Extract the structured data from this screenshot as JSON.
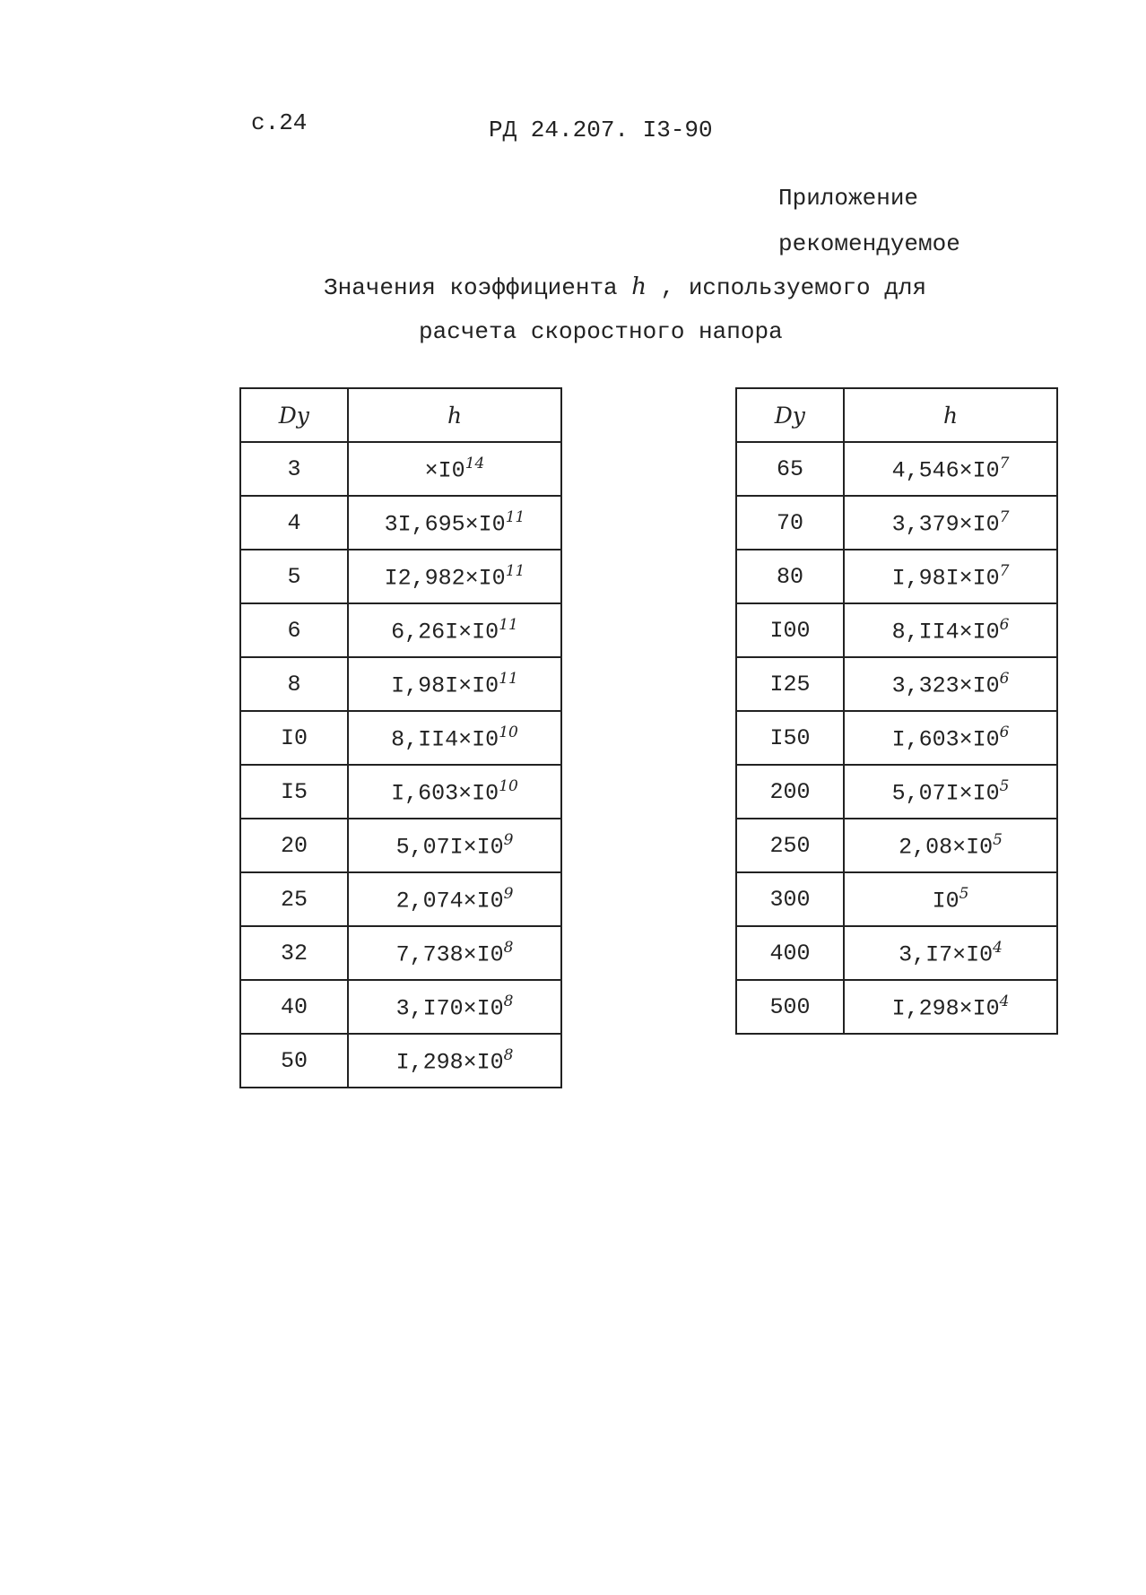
{
  "header": {
    "page": "с.24",
    "code": "РД 24.207. I3-90"
  },
  "appendix": {
    "label": "Приложение",
    "status": "рекомендуемое"
  },
  "title": {
    "line1_before": "Значения коэффициента",
    "symbol": "h",
    "line1_after": ", используемого для",
    "line2": "расчета скоростного напора"
  },
  "tables": [
    {
      "header": [
        "Dу",
        "h"
      ],
      "rows": [
        [
          "3",
          "×I0",
          "14"
        ],
        [
          "4",
          "3I,695×I0",
          "11"
        ],
        [
          "5",
          "I2,982×I0",
          "11"
        ],
        [
          "6",
          "6,26I×I0",
          "11"
        ],
        [
          "8",
          "I,98I×I0",
          "11"
        ],
        [
          "I0",
          "8,II4×I0",
          "10"
        ],
        [
          "I5",
          "I,603×I0",
          "10"
        ],
        [
          "20",
          "5,07I×I0",
          "9"
        ],
        [
          "25",
          "2,074×I0",
          "9"
        ],
        [
          "32",
          "7,738×I0",
          "8"
        ],
        [
          "40",
          "3,I70×I0",
          "8"
        ],
        [
          "50",
          "I,298×I0",
          "8"
        ]
      ]
    },
    {
      "header": [
        "Dу",
        "h"
      ],
      "rows": [
        [
          "65",
          "4,546×I0",
          "7"
        ],
        [
          "70",
          "3,379×I0",
          "7"
        ],
        [
          "80",
          "I,98I×I0",
          "7"
        ],
        [
          "I00",
          "8,II4×I0",
          "6"
        ],
        [
          "I25",
          "3,323×I0",
          "6"
        ],
        [
          "I50",
          "I,603×I0",
          "6"
        ],
        [
          "200",
          "5,07I×I0",
          "5"
        ],
        [
          "250",
          "2,08×I0",
          "5"
        ],
        [
          "300",
          "I0",
          "5"
        ],
        [
          "400",
          "3,I7×I0",
          "4"
        ],
        [
          "500",
          "I,298×I0",
          "4"
        ]
      ]
    }
  ]
}
